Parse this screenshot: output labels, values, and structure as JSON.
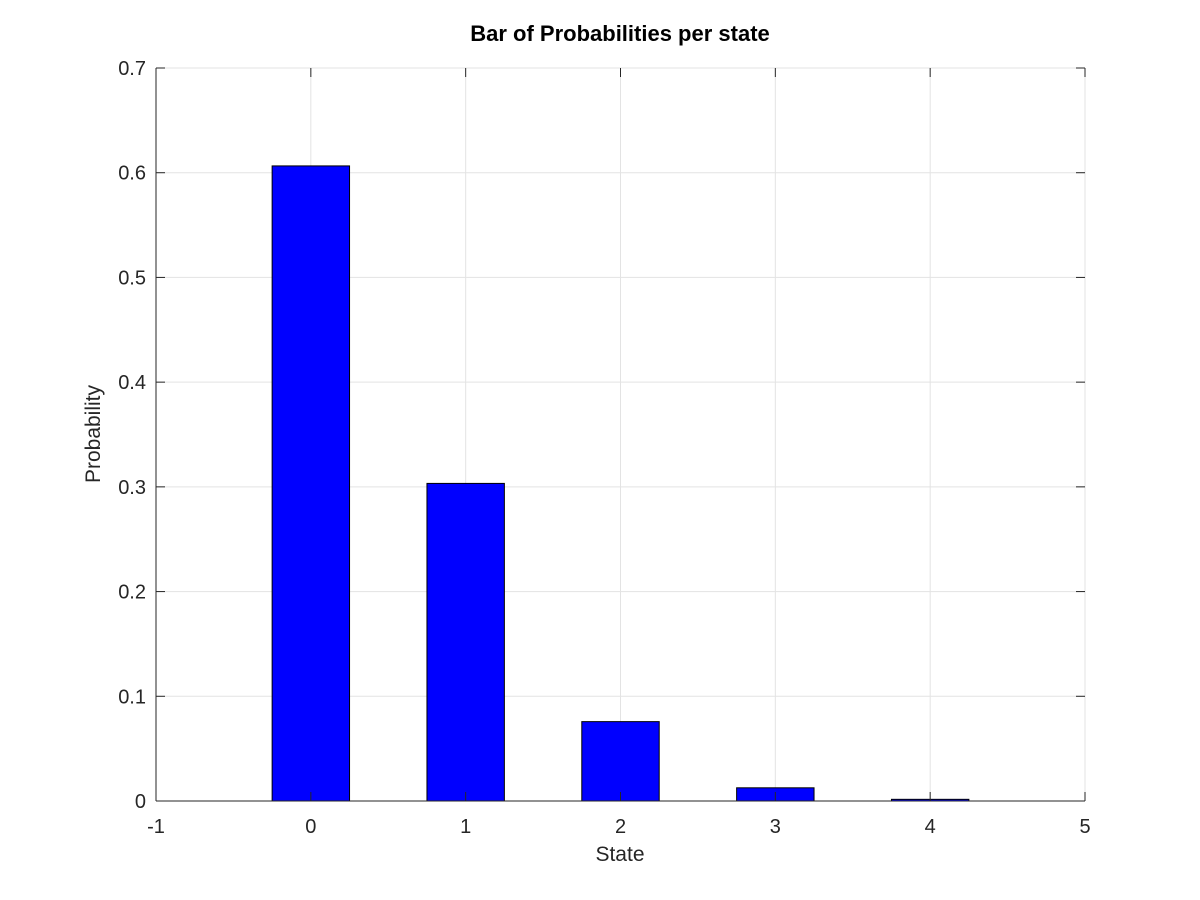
{
  "chart_data": {
    "type": "bar",
    "title": "Bar of Probabilities per state",
    "xlabel": "State",
    "ylabel": "Probability",
    "categories": [
      0,
      1,
      2,
      3,
      4
    ],
    "values": [
      0.6065,
      0.3033,
      0.0758,
      0.0126,
      0.0016
    ],
    "xlim": [
      -1,
      5
    ],
    "ylim": [
      0,
      0.7
    ],
    "xticks": [
      "-1",
      "0",
      "1",
      "2",
      "3",
      "4",
      "5"
    ],
    "xtick_values": [
      -1,
      0,
      1,
      2,
      3,
      4,
      5
    ],
    "yticks": [
      "0",
      "0.1",
      "0.2",
      "0.3",
      "0.4",
      "0.5",
      "0.6",
      "0.7"
    ],
    "ytick_values": [
      0,
      0.1,
      0.2,
      0.3,
      0.4,
      0.5,
      0.6,
      0.7
    ],
    "bar_width": 0.5,
    "grid": true,
    "colors": {
      "bar_fill": "#0000ff",
      "bar_edge": "#000000",
      "grid": "#e3e3e3",
      "axis": "#262626"
    }
  }
}
